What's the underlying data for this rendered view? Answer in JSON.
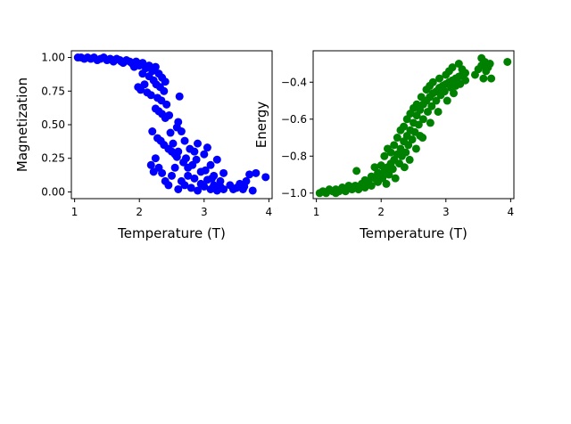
{
  "chart_data": [
    {
      "type": "scatter",
      "title": "",
      "xlabel": "Temperature (T)",
      "ylabel": "Magnetization",
      "xlim": [
        0.95,
        4.05
      ],
      "ylim": [
        -0.05,
        1.05
      ],
      "xticks": [
        1,
        2,
        3,
        4
      ],
      "yticks": [
        0.0,
        0.25,
        0.5,
        0.75,
        1.0
      ],
      "ytick_labels": [
        "0.00",
        "0.25",
        "0.50",
        "0.75",
        "1.00"
      ],
      "grid": false,
      "color": "#0000ff",
      "points": [
        [
          1.05,
          1.0
        ],
        [
          1.1,
          1.0
        ],
        [
          1.15,
          0.99
        ],
        [
          1.2,
          1.0
        ],
        [
          1.25,
          0.99
        ],
        [
          1.3,
          1.0
        ],
        [
          1.35,
          0.98
        ],
        [
          1.4,
          0.99
        ],
        [
          1.45,
          1.0
        ],
        [
          1.5,
          0.98
        ],
        [
          1.55,
          0.99
        ],
        [
          1.6,
          0.97
        ],
        [
          1.65,
          0.99
        ],
        [
          1.7,
          0.98
        ],
        [
          1.75,
          0.96
        ],
        [
          1.8,
          0.98
        ],
        [
          1.85,
          0.97
        ],
        [
          1.9,
          0.95
        ],
        [
          1.95,
          0.97
        ],
        [
          2.0,
          0.94
        ],
        [
          2.05,
          0.96
        ],
        [
          2.1,
          0.92
        ],
        [
          2.15,
          0.94
        ],
        [
          2.2,
          0.9
        ],
        [
          2.25,
          0.93
        ],
        [
          2.3,
          0.88
        ],
        [
          2.35,
          0.85
        ],
        [
          1.98,
          0.78
        ],
        [
          2.02,
          0.76
        ],
        [
          2.08,
          0.8
        ],
        [
          2.12,
          0.74
        ],
        [
          2.18,
          0.72
        ],
        [
          2.22,
          0.83
        ],
        [
          2.28,
          0.7
        ],
        [
          2.32,
          0.78
        ],
        [
          2.38,
          0.75
        ],
        [
          2.4,
          0.82
        ],
        [
          2.42,
          0.65
        ],
        [
          2.25,
          0.62
        ],
        [
          2.3,
          0.6
        ],
        [
          2.35,
          0.58
        ],
        [
          2.4,
          0.55
        ],
        [
          2.2,
          0.45
        ],
        [
          2.28,
          0.4
        ],
        [
          2.33,
          0.38
        ],
        [
          2.38,
          0.35
        ],
        [
          2.45,
          0.32
        ],
        [
          2.5,
          0.3
        ],
        [
          2.55,
          0.28
        ],
        [
          2.6,
          0.52
        ],
        [
          2.62,
          0.71
        ],
        [
          2.65,
          0.45
        ],
        [
          2.7,
          0.38
        ],
        [
          2.72,
          0.25
        ],
        [
          2.78,
          0.32
        ],
        [
          2.82,
          0.2
        ],
        [
          2.85,
          0.3
        ],
        [
          2.9,
          0.36
        ],
        [
          2.95,
          0.15
        ],
        [
          3.0,
          0.28
        ],
        [
          3.05,
          0.33
        ],
        [
          3.1,
          0.2
        ],
        [
          3.15,
          0.12
        ],
        [
          3.2,
          0.24
        ],
        [
          3.25,
          0.08
        ],
        [
          3.3,
          0.14
        ],
        [
          2.25,
          0.25
        ],
        [
          2.3,
          0.18
        ],
        [
          2.35,
          0.14
        ],
        [
          2.4,
          0.08
        ],
        [
          2.45,
          0.05
        ],
        [
          2.5,
          0.12
        ],
        [
          2.55,
          0.18
        ],
        [
          2.6,
          0.02
        ],
        [
          2.65,
          0.08
        ],
        [
          2.7,
          0.05
        ],
        [
          2.75,
          0.12
        ],
        [
          2.8,
          0.03
        ],
        [
          2.85,
          0.1
        ],
        [
          2.9,
          0.01
        ],
        [
          2.95,
          0.06
        ],
        [
          3.0,
          0.04
        ],
        [
          3.05,
          0.09
        ],
        [
          3.1,
          0.02
        ],
        [
          3.15,
          0.05
        ],
        [
          3.2,
          0.01
        ],
        [
          3.25,
          0.04
        ],
        [
          3.3,
          0.02
        ],
        [
          3.5,
          0.03
        ],
        [
          3.55,
          0.06
        ],
        [
          3.6,
          0.02
        ],
        [
          3.65,
          0.08
        ],
        [
          3.7,
          0.13
        ],
        [
          3.75,
          0.01
        ],
        [
          3.8,
          0.14
        ],
        [
          3.95,
          0.11
        ],
        [
          2.18,
          0.2
        ],
        [
          2.22,
          0.15
        ],
        [
          2.6,
          0.3
        ],
        [
          2.68,
          0.22
        ],
        [
          2.75,
          0.18
        ],
        [
          2.88,
          0.24
        ],
        [
          3.02,
          0.16
        ],
        [
          3.12,
          0.1
        ],
        [
          2.48,
          0.44
        ],
        [
          2.52,
          0.36
        ],
        [
          2.58,
          0.26
        ],
        [
          1.92,
          0.93
        ],
        [
          2.05,
          0.88
        ],
        [
          2.15,
          0.86
        ],
        [
          2.26,
          0.8
        ],
        [
          2.34,
          0.68
        ],
        [
          2.46,
          0.57
        ],
        [
          2.58,
          0.48
        ],
        [
          3.4,
          0.05
        ],
        [
          3.45,
          0.02
        ],
        [
          3.62,
          0.04
        ],
        [
          1.88,
          0.96
        ],
        [
          1.72,
          0.97
        ],
        [
          1.58,
          0.98
        ]
      ]
    },
    {
      "type": "scatter",
      "title": "",
      "xlabel": "Temperature (T)",
      "ylabel": "Energy",
      "xlim": [
        0.95,
        4.05
      ],
      "ylim": [
        -1.03,
        -0.23
      ],
      "xticks": [
        1,
        2,
        3,
        4
      ],
      "yticks": [
        -1.0,
        -0.8,
        -0.6,
        -0.4
      ],
      "ytick_labels": [
        "−1.0",
        "−0.8",
        "−0.6",
        "−0.4"
      ],
      "grid": false,
      "color": "#008000",
      "points": [
        [
          1.05,
          -1.0
        ],
        [
          1.1,
          -0.99
        ],
        [
          1.15,
          -1.0
        ],
        [
          1.2,
          -0.98
        ],
        [
          1.25,
          -0.99
        ],
        [
          1.3,
          -1.0
        ],
        [
          1.35,
          -0.99
        ],
        [
          1.4,
          -0.98
        ],
        [
          1.45,
          -0.99
        ],
        [
          1.5,
          -0.97
        ],
        [
          1.55,
          -0.98
        ],
        [
          1.6,
          -0.96
        ],
        [
          1.65,
          -0.98
        ],
        [
          1.7,
          -0.95
        ],
        [
          1.75,
          -0.97
        ],
        [
          1.8,
          -0.94
        ],
        [
          1.85,
          -0.96
        ],
        [
          1.9,
          -0.92
        ],
        [
          1.95,
          -0.94
        ],
        [
          2.0,
          -0.9
        ],
        [
          2.05,
          -0.88
        ],
        [
          2.1,
          -0.86
        ],
        [
          2.15,
          -0.84
        ],
        [
          2.2,
          -0.82
        ],
        [
          2.25,
          -0.79
        ],
        [
          2.3,
          -0.76
        ],
        [
          2.35,
          -0.72
        ],
        [
          2.4,
          -0.69
        ],
        [
          2.45,
          -0.66
        ],
        [
          2.5,
          -0.62
        ],
        [
          2.55,
          -0.58
        ],
        [
          2.6,
          -0.55
        ],
        [
          2.65,
          -0.52
        ],
        [
          2.7,
          -0.5
        ],
        [
          2.75,
          -0.48
        ],
        [
          2.8,
          -0.46
        ],
        [
          2.85,
          -0.45
        ],
        [
          2.9,
          -0.43
        ],
        [
          2.95,
          -0.42
        ],
        [
          3.0,
          -0.41
        ],
        [
          3.05,
          -0.4
        ],
        [
          3.1,
          -0.39
        ],
        [
          3.15,
          -0.38
        ],
        [
          3.2,
          -0.37
        ],
        [
          3.25,
          -0.36
        ],
        [
          3.3,
          -0.35
        ],
        [
          3.5,
          -0.33
        ],
        [
          3.55,
          -0.31
        ],
        [
          3.6,
          -0.29
        ],
        [
          3.65,
          -0.32
        ],
        [
          3.7,
          -0.38
        ],
        [
          3.95,
          -0.29
        ],
        [
          1.62,
          -0.88
        ],
        [
          1.9,
          -0.86
        ],
        [
          2.0,
          -0.85
        ],
        [
          2.05,
          -0.8
        ],
        [
          2.1,
          -0.76
        ],
        [
          2.15,
          -0.78
        ],
        [
          2.2,
          -0.74
        ],
        [
          2.25,
          -0.7
        ],
        [
          2.3,
          -0.66
        ],
        [
          2.35,
          -0.64
        ],
        [
          2.4,
          -0.6
        ],
        [
          2.45,
          -0.57
        ],
        [
          2.5,
          -0.54
        ],
        [
          2.55,
          -0.52
        ],
        [
          2.6,
          -0.69
        ],
        [
          2.62,
          -0.48
        ],
        [
          2.7,
          -0.44
        ],
        [
          2.75,
          -0.42
        ],
        [
          2.8,
          -0.4
        ],
        [
          2.9,
          -0.38
        ],
        [
          3.0,
          -0.36
        ],
        [
          3.05,
          -0.34
        ],
        [
          3.1,
          -0.32
        ],
        [
          3.2,
          -0.3
        ],
        [
          3.15,
          -0.42
        ],
        [
          3.25,
          -0.33
        ],
        [
          3.55,
          -0.27
        ],
        [
          3.58,
          -0.38
        ],
        [
          1.75,
          -0.93
        ],
        [
          1.85,
          -0.91
        ],
        [
          1.95,
          -0.89
        ],
        [
          2.02,
          -0.92
        ],
        [
          2.12,
          -0.9
        ],
        [
          2.18,
          -0.87
        ],
        [
          2.28,
          -0.84
        ],
        [
          2.32,
          -0.8
        ],
        [
          2.38,
          -0.78
        ],
        [
          2.42,
          -0.74
        ],
        [
          2.48,
          -0.71
        ],
        [
          2.52,
          -0.67
        ],
        [
          2.58,
          -0.63
        ],
        [
          2.65,
          -0.6
        ],
        [
          2.72,
          -0.56
        ],
        [
          2.78,
          -0.53
        ],
        [
          2.85,
          -0.5
        ],
        [
          2.92,
          -0.47
        ],
        [
          2.98,
          -0.45
        ],
        [
          3.08,
          -0.43
        ],
        [
          1.3,
          -0.98
        ],
        [
          1.4,
          -0.97
        ],
        [
          1.5,
          -0.96
        ],
        [
          2.08,
          -0.95
        ],
        [
          2.22,
          -0.92
        ],
        [
          2.36,
          -0.86
        ],
        [
          2.44,
          -0.82
        ],
        [
          2.54,
          -0.76
        ],
        [
          2.64,
          -0.7
        ],
        [
          2.76,
          -0.62
        ],
        [
          2.88,
          -0.56
        ],
        [
          3.02,
          -0.5
        ],
        [
          3.12,
          -0.46
        ],
        [
          3.22,
          -0.41
        ],
        [
          3.3,
          -0.39
        ],
        [
          3.45,
          -0.36
        ],
        [
          3.62,
          -0.34
        ],
        [
          3.68,
          -0.3
        ]
      ]
    }
  ]
}
